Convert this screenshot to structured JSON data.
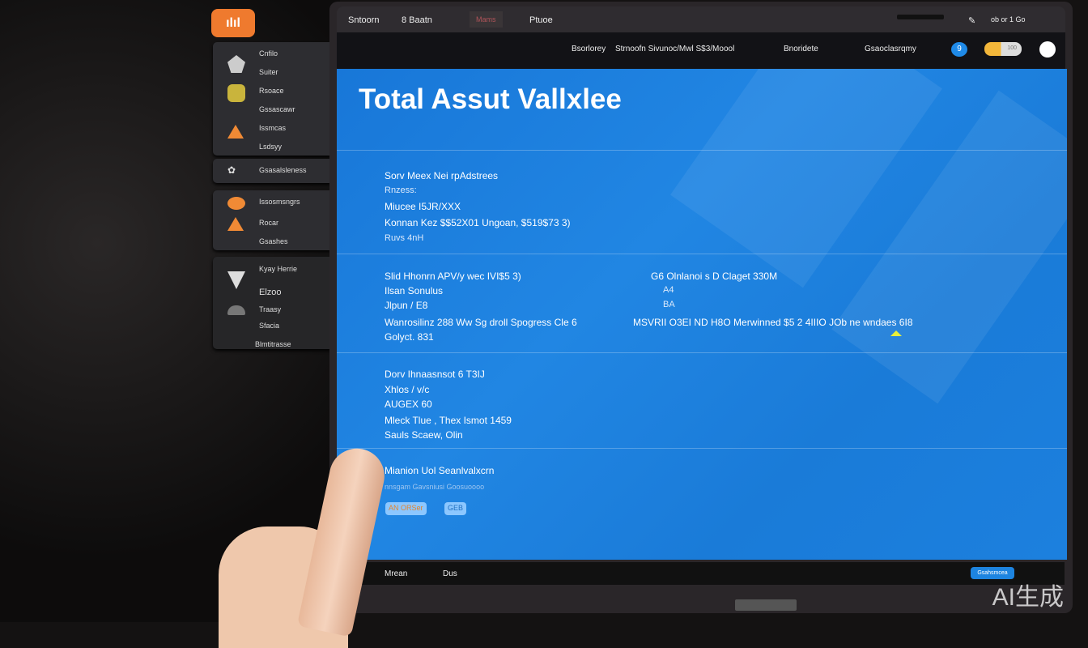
{
  "app_icon": "ılıl",
  "sidebar": {
    "group1": [
      "Cnfilo",
      "Suiter",
      "Rsoace",
      "Gssascawr",
      "Issmcas",
      "Lsdsyy"
    ],
    "group2": [
      "Gsasalsleness"
    ],
    "group3": [
      "Issosmsngrs",
      "Rocar",
      "Gsashes"
    ],
    "group4": [
      "Kyay Herrie",
      "Elzoo",
      "Traasy",
      "Sfacia",
      "Blmtitrasse"
    ]
  },
  "topbar": {
    "tabs": [
      "Sntoorn",
      "8 Baatn",
      "Mams",
      "Ptuoe"
    ],
    "right": "ob or 1 Go"
  },
  "navbar": {
    "items": [
      "Bsorlorey",
      "Strnoofn Sivunoc/Mwl S$3/Moool",
      "Bnoridete",
      "Gsaoclasrqmy"
    ],
    "badge": "9",
    "toggle": "100"
  },
  "main": {
    "title": "Total Assut Vallxlee",
    "section1": [
      "Sorv Meex Nei rpAdstrees",
      "Rnzess:",
      "Miucee  I5JR/XXX",
      "Konnan Kez $$52X01 Ungoan, $519$73 3)",
      "Ruvs    4nH"
    ],
    "section2_left": [
      "Slid Hhonrn APV/y  wec IVI$5 3)",
      "Ilsan Sonulus",
      "Jlpun / E8",
      "Wanrosilinz 288 Ww Sg droll Spogress Cle 6",
      "Golyct. 831"
    ],
    "section2_right": [
      "G6 Olnlanoi s D Claget 330M",
      "A4",
      "BA",
      "MSVRII O3EI ND H8O Merwinned $5 2 4IIIO JOb ne wndaes 6I8"
    ],
    "section3": [
      "Dorv Ihnaasnsot 6 T3IJ",
      "Xhlos / v/c",
      "AUGEX 60",
      "Mleck Tlue , Thex Ismot 1459",
      "Sauls Scaew, Olin"
    ],
    "section4": {
      "title": "Mianion Uol Seanlvalxcrn",
      "subtitle": "nnsgam Gavsniusi Goosuoooo",
      "tags": [
        "AN ORSer",
        "GEB"
      ]
    }
  },
  "bottombar": {
    "items": [
      "Mrean",
      "Dus"
    ],
    "button": "Gsahsmcea"
  },
  "stand_label": "...",
  "watermark": "AI生成",
  "colors": {
    "accent": "#ef7a2e",
    "main_bg": "#1a7bd8",
    "button": "#1d84e0"
  }
}
